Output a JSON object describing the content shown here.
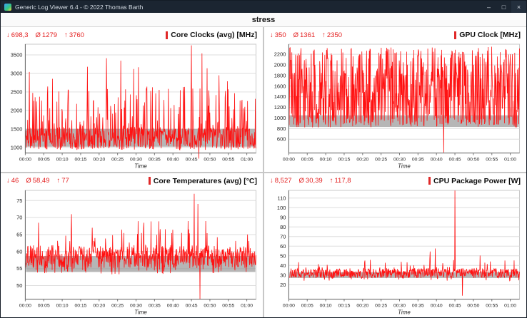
{
  "window": {
    "title": "Generic Log Viewer 6.4 -  © 2022 Thomas Barth",
    "header": "stress",
    "controls": {
      "minimize": "–",
      "maximize": "□",
      "close": "×"
    }
  },
  "stats_symbols": {
    "min": "↓",
    "avg": "Ø",
    "max": "↑"
  },
  "chart_data": [
    {
      "type": "line",
      "title": "Core Clocks (avg) [MHz]",
      "stats": {
        "min": "698,3",
        "avg": "1279",
        "max": "3760"
      },
      "series_color": "#ff1212",
      "xlabel": "Time",
      "x_ticks": [
        "00:00",
        "00:05",
        "00:10",
        "00:15",
        "00:20",
        "00:25",
        "00:30",
        "00:35",
        "00:40",
        "00:45",
        "00:50",
        "00:55",
        "01:00"
      ],
      "x_span_minutes": 62.5,
      "y_ticks": [
        1000,
        1500,
        2000,
        2500,
        3000,
        3500
      ],
      "ylim": [
        850,
        3790
      ],
      "band": [
        1020,
        1500
      ],
      "gen": {
        "seed": 11,
        "n": 680,
        "base": 1250,
        "jitter": 300,
        "spike_p": 0.17,
        "spike": [
          1550,
          2650
        ],
        "big_p": 0.008,
        "big": [
          2750,
          3550
        ],
        "dip_p": 0.03,
        "dip": [
          930,
          1010
        ],
        "clamp": [
          900,
          3760
        ]
      },
      "events": [
        [
          0.018,
          3040
        ],
        [
          0.27,
          3180
        ],
        [
          0.47,
          3120
        ],
        [
          0.72,
          3760
        ],
        [
          0.752,
          698.3
        ],
        [
          0.84,
          2950
        ]
      ]
    },
    {
      "type": "line",
      "title": "GPU Clock [MHz]",
      "stats": {
        "min": "350",
        "avg": "1361",
        "max": "2350"
      },
      "series_color": "#ff1212",
      "xlabel": "Time",
      "x_ticks": [
        "00:00",
        "00:05",
        "00:10",
        "00:15",
        "00:20",
        "00:25",
        "00:30",
        "00:35",
        "00:40",
        "00:45",
        "00:50",
        "00:55",
        "01:00"
      ],
      "x_span_minutes": 62.5,
      "y_ticks": [
        600,
        800,
        1000,
        1200,
        1400,
        1600,
        1800,
        2000,
        2200
      ],
      "ylim": [
        340,
        2390
      ],
      "band": [
        830,
        1050
      ],
      "gen": {
        "seed": 23,
        "n": 680,
        "base": 1380,
        "jitter": 520,
        "spike_p": 0.2,
        "spike": [
          1900,
          2330
        ],
        "big_p": 0.01,
        "big": [
          2250,
          2350
        ],
        "dip_p": 0.17,
        "dip": [
          820,
          1010
        ],
        "clamp": [
          800,
          2350
        ]
      },
      "events": [
        [
          0.672,
          350
        ],
        [
          0.04,
          870
        ],
        [
          0.96,
          2200
        ]
      ]
    },
    {
      "type": "line",
      "title": "Core Temperatures (avg) [°C]",
      "stats": {
        "min": "46",
        "avg": "58,49",
        "max": "77"
      },
      "series_color": "#ff1212",
      "xlabel": "Time",
      "x_ticks": [
        "00:00",
        "00:05",
        "00:10",
        "00:15",
        "00:20",
        "00:25",
        "00:30",
        "00:35",
        "00:40",
        "00:45",
        "00:50",
        "00:55",
        "01:00"
      ],
      "x_span_minutes": 62.5,
      "y_ticks": [
        50,
        55,
        60,
        65,
        70,
        75
      ],
      "ylim": [
        46,
        78
      ],
      "band": [
        54,
        58.7
      ],
      "gen": {
        "seed": 37,
        "n": 680,
        "base": 58.5,
        "jitter": 3.4,
        "spike_p": 0.06,
        "spike": [
          62,
          69
        ],
        "big_p": 0.006,
        "big": [
          69,
          74
        ],
        "dip_p": 0.06,
        "dip": [
          53.3,
          55
        ],
        "clamp": [
          52.8,
          77
        ]
      },
      "events": [
        [
          0.2,
          71
        ],
        [
          0.732,
          77
        ],
        [
          0.748,
          74
        ],
        [
          0.757,
          46
        ]
      ]
    },
    {
      "type": "line",
      "title": "CPU Package Power [W]",
      "stats": {
        "min": "8,527",
        "avg": "30,39",
        "max": "117,8"
      },
      "series_color": "#ff1212",
      "xlabel": "Time",
      "x_ticks": [
        "00:00",
        "00:05",
        "00:10",
        "00:15",
        "00:20",
        "00:25",
        "00:30",
        "00:35",
        "00:40",
        "00:45",
        "00:50",
        "00:55",
        "01:00"
      ],
      "x_span_minutes": 62.5,
      "y_ticks": [
        20,
        30,
        40,
        50,
        60,
        70,
        80,
        90,
        100,
        110
      ],
      "ylim": [
        5,
        118
      ],
      "band": [
        27,
        33
      ],
      "gen": {
        "seed": 53,
        "n": 680,
        "base": 32,
        "jitter": 5,
        "spike_p": 0.05,
        "spike": [
          37,
          47
        ],
        "big_p": 0.004,
        "big": [
          47,
          58
        ],
        "dip_p": 0.03,
        "dip": [
          24,
          27
        ],
        "clamp": [
          23,
          117.8
        ]
      },
      "events": [
        [
          0.72,
          117.8
        ],
        [
          0.752,
          8.527
        ]
      ]
    }
  ]
}
